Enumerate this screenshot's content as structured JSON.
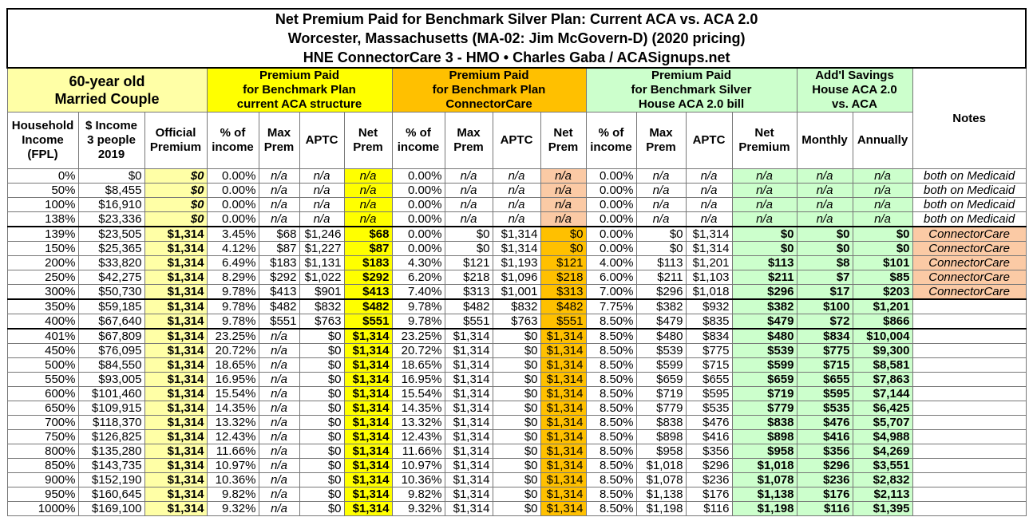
{
  "header": {
    "title": [
      "Net Premium Paid for Benchmark Silver Plan: Current ACA vs. ACA 2.0",
      "Worcester, Massachusetts (MA-02: Jim McGovern-D) (2020 pricing)",
      "HNE ConnectorCare 3 - HMO • Charles Gaba / ACASignups.net"
    ]
  },
  "table": {
    "groups": [
      "60-year old\nMarried Couple",
      "Premium Paid\nfor Benchmark Plan\ncurrent ACA structure",
      "Premium Paid\nfor Benchmark Plan\nConnectorCare",
      "Premium Paid\nfor Benchmark Silver\nHouse ACA 2.0 bill",
      "Add'l Savings\nHouse ACA 2.0\nvs. ACA",
      "Notes"
    ],
    "columns": [
      "Household\nIncome\n(FPL)",
      "$ Income\n3 people\n2019",
      "Official\nPremium",
      "% of\nincome",
      "Max\nPrem",
      "APTC",
      "Net\nPrem",
      "% of\nincome",
      "Max\nPrem",
      "APTC",
      "Net\nPrem",
      "% of\nincome",
      "Max\nPrem",
      "APTC",
      "Net\nPremium",
      "Monthly",
      "Annually"
    ],
    "rows": [
      [
        "0%",
        "$0",
        "$0",
        "0.00%",
        "n/a",
        "n/a",
        "n/a",
        "0.00%",
        "n/a",
        "n/a",
        "n/a",
        "0.00%",
        "n/a",
        "n/a",
        "n/a",
        "n/a",
        "n/a",
        "both on Medicaid"
      ],
      [
        "50%",
        "$8,455",
        "$0",
        "0.00%",
        "n/a",
        "n/a",
        "n/a",
        "0.00%",
        "n/a",
        "n/a",
        "n/a",
        "0.00%",
        "n/a",
        "n/a",
        "n/a",
        "n/a",
        "n/a",
        "both on Medicaid"
      ],
      [
        "100%",
        "$16,910",
        "$0",
        "0.00%",
        "n/a",
        "n/a",
        "n/a",
        "0.00%",
        "n/a",
        "n/a",
        "n/a",
        "0.00%",
        "n/a",
        "n/a",
        "n/a",
        "n/a",
        "n/a",
        "both on Medicaid"
      ],
      [
        "138%",
        "$23,336",
        "$0",
        "0.00%",
        "n/a",
        "n/a",
        "n/a",
        "0.00%",
        "n/a",
        "n/a",
        "n/a",
        "0.00%",
        "n/a",
        "n/a",
        "n/a",
        "n/a",
        "n/a",
        "both on Medicaid"
      ],
      [
        "139%",
        "$23,505",
        "$1,314",
        "3.45%",
        "$68",
        "$1,246",
        "$68",
        "0.00%",
        "$0",
        "$1,314",
        "$0",
        "0.00%",
        "$0",
        "$1,314",
        "$0",
        "$0",
        "$0",
        "ConnectorCare"
      ],
      [
        "150%",
        "$25,365",
        "$1,314",
        "4.12%",
        "$87",
        "$1,227",
        "$87",
        "0.00%",
        "$0",
        "$1,314",
        "$0",
        "0.00%",
        "$0",
        "$1,314",
        "$0",
        "$0",
        "$0",
        "ConnectorCare"
      ],
      [
        "200%",
        "$33,820",
        "$1,314",
        "6.49%",
        "$183",
        "$1,131",
        "$183",
        "4.30%",
        "$121",
        "$1,193",
        "$121",
        "4.00%",
        "$113",
        "$1,201",
        "$113",
        "$8",
        "$101",
        "ConnectorCare"
      ],
      [
        "250%",
        "$42,275",
        "$1,314",
        "8.29%",
        "$292",
        "$1,022",
        "$292",
        "6.20%",
        "$218",
        "$1,096",
        "$218",
        "6.00%",
        "$211",
        "$1,103",
        "$211",
        "$7",
        "$85",
        "ConnectorCare"
      ],
      [
        "300%",
        "$50,730",
        "$1,314",
        "9.78%",
        "$413",
        "$901",
        "$413",
        "7.40%",
        "$313",
        "$1,001",
        "$313",
        "7.00%",
        "$296",
        "$1,018",
        "$296",
        "$17",
        "$203",
        "ConnectorCare"
      ],
      [
        "350%",
        "$59,185",
        "$1,314",
        "9.78%",
        "$482",
        "$832",
        "$482",
        "9.78%",
        "$482",
        "$832",
        "$482",
        "7.75%",
        "$382",
        "$932",
        "$382",
        "$100",
        "$1,201"
      ],
      [
        "400%",
        "$67,640",
        "$1,314",
        "9.78%",
        "$551",
        "$763",
        "$551",
        "9.78%",
        "$551",
        "$763",
        "$551",
        "8.50%",
        "$479",
        "$835",
        "$479",
        "$72",
        "$866"
      ],
      [
        "401%",
        "$67,809",
        "$1,314",
        "23.25%",
        "n/a",
        "$0",
        "$1,314",
        "23.25%",
        "$1,314",
        "$0",
        "$1,314",
        "8.50%",
        "$480",
        "$834",
        "$480",
        "$834",
        "$10,004"
      ],
      [
        "450%",
        "$76,095",
        "$1,314",
        "20.72%",
        "n/a",
        "$0",
        "$1,314",
        "20.72%",
        "$1,314",
        "$0",
        "$1,314",
        "8.50%",
        "$539",
        "$775",
        "$539",
        "$775",
        "$9,300"
      ],
      [
        "500%",
        "$84,550",
        "$1,314",
        "18.65%",
        "n/a",
        "$0",
        "$1,314",
        "18.65%",
        "$1,314",
        "$0",
        "$1,314",
        "8.50%",
        "$599",
        "$715",
        "$599",
        "$715",
        "$8,581"
      ],
      [
        "550%",
        "$93,005",
        "$1,314",
        "16.95%",
        "n/a",
        "$0",
        "$1,314",
        "16.95%",
        "$1,314",
        "$0",
        "$1,314",
        "8.50%",
        "$659",
        "$655",
        "$659",
        "$655",
        "$7,863"
      ],
      [
        "600%",
        "$101,460",
        "$1,314",
        "15.54%",
        "n/a",
        "$0",
        "$1,314",
        "15.54%",
        "$1,314",
        "$0",
        "$1,314",
        "8.50%",
        "$719",
        "$595",
        "$719",
        "$595",
        "$7,144"
      ],
      [
        "650%",
        "$109,915",
        "$1,314",
        "14.35%",
        "n/a",
        "$0",
        "$1,314",
        "14.35%",
        "$1,314",
        "$0",
        "$1,314",
        "8.50%",
        "$779",
        "$535",
        "$779",
        "$535",
        "$6,425"
      ],
      [
        "700%",
        "$118,370",
        "$1,314",
        "13.32%",
        "n/a",
        "$0",
        "$1,314",
        "13.32%",
        "$1,314",
        "$0",
        "$1,314",
        "8.50%",
        "$838",
        "$476",
        "$838",
        "$476",
        "$5,707"
      ],
      [
        "750%",
        "$126,825",
        "$1,314",
        "12.43%",
        "n/a",
        "$0",
        "$1,314",
        "12.43%",
        "$1,314",
        "$0",
        "$1,314",
        "8.50%",
        "$898",
        "$416",
        "$898",
        "$416",
        "$4,988"
      ],
      [
        "800%",
        "$135,280",
        "$1,314",
        "11.66%",
        "n/a",
        "$0",
        "$1,314",
        "11.66%",
        "$1,314",
        "$0",
        "$1,314",
        "8.50%",
        "$958",
        "$356",
        "$958",
        "$356",
        "$4,269"
      ],
      [
        "850%",
        "$143,735",
        "$1,314",
        "10.97%",
        "n/a",
        "$0",
        "$1,314",
        "10.97%",
        "$1,314",
        "$0",
        "$1,314",
        "8.50%",
        "$1,018",
        "$296",
        "$1,018",
        "$296",
        "$3,551"
      ],
      [
        "900%",
        "$152,190",
        "$1,314",
        "10.36%",
        "n/a",
        "$0",
        "$1,314",
        "10.36%",
        "$1,314",
        "$0",
        "$1,314",
        "8.50%",
        "$1,078",
        "$236",
        "$1,078",
        "$236",
        "$2,832"
      ],
      [
        "950%",
        "$160,645",
        "$1,314",
        "9.82%",
        "n/a",
        "$0",
        "$1,314",
        "9.82%",
        "$1,314",
        "$0",
        "$1,314",
        "8.50%",
        "$1,138",
        "$176",
        "$1,138",
        "$176",
        "$2,113"
      ],
      [
        "1000%",
        "$169,100",
        "$1,314",
        "9.32%",
        "n/a",
        "$0",
        "$1,314",
        "9.32%",
        "$1,314",
        "$0",
        "$1,314",
        "8.50%",
        "$1,198",
        "$116",
        "$1,198",
        "$116",
        "$1,395"
      ]
    ]
  }
}
